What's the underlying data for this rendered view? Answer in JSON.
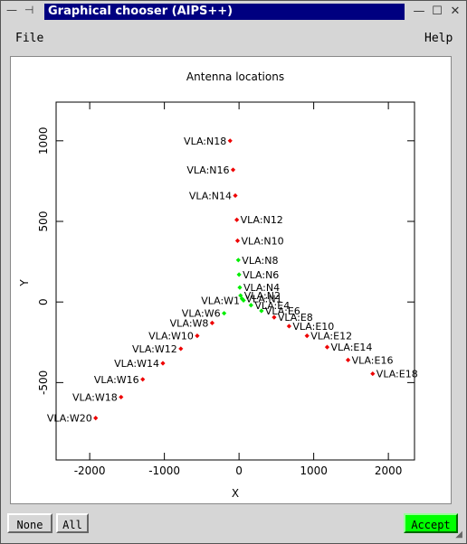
{
  "window": {
    "title": "Graphical chooser (AIPS++)",
    "left_glyphs": "— ⊣",
    "min_glyph": "—",
    "max_glyph": "☐",
    "close_glyph": "✕"
  },
  "menubar": {
    "file": "File",
    "help": "Help"
  },
  "buttons": {
    "none": "None",
    "all": "All",
    "accept": "Accept"
  },
  "colors": {
    "selected": "#00ee00",
    "unselected": "#ee0000",
    "accent": "#00ff00",
    "title_bg": "#000080"
  },
  "chart_data": {
    "type": "scatter",
    "title": "Antenna locations",
    "xlabel": "X",
    "ylabel": "Y",
    "xlim": [
      -2450,
      2350
    ],
    "ylim": [
      -980,
      1240
    ],
    "xticks": [
      -2000,
      -1000,
      0,
      1000,
      2000
    ],
    "yticks": [
      -500,
      0,
      500,
      1000
    ],
    "points": [
      {
        "label": "VLA:N18",
        "x": -120,
        "y": 1000,
        "selected": false
      },
      {
        "label": "VLA:N16",
        "x": -80,
        "y": 820,
        "selected": false
      },
      {
        "label": "VLA:N14",
        "x": -50,
        "y": 660,
        "selected": false
      },
      {
        "label": "VLA:N12",
        "x": -30,
        "y": 510,
        "selected": false
      },
      {
        "label": "VLA:N10",
        "x": -20,
        "y": 380,
        "selected": false
      },
      {
        "label": "VLA:N8",
        "x": -10,
        "y": 260,
        "selected": true
      },
      {
        "label": "VLA:N6",
        "x": 0,
        "y": 170,
        "selected": true
      },
      {
        "label": "VLA:N4",
        "x": 10,
        "y": 90,
        "selected": true
      },
      {
        "label": "VLA:N2",
        "x": 20,
        "y": 40,
        "selected": true
      },
      {
        "label": "VLA:N1",
        "x": 40,
        "y": 20,
        "selected": true
      },
      {
        "label": "VLA:W1",
        "x": 60,
        "y": 10,
        "selected": true
      },
      {
        "label": "VLA:E4",
        "x": 160,
        "y": -20,
        "selected": true
      },
      {
        "label": "VLA:E6",
        "x": 300,
        "y": -55,
        "selected": true
      },
      {
        "label": "VLA:E8",
        "x": 470,
        "y": -95,
        "selected": false
      },
      {
        "label": "VLA:E10",
        "x": 670,
        "y": -150,
        "selected": false
      },
      {
        "label": "VLA:E12",
        "x": 910,
        "y": -210,
        "selected": false
      },
      {
        "label": "VLA:E14",
        "x": 1180,
        "y": -280,
        "selected": false
      },
      {
        "label": "VLA:E16",
        "x": 1460,
        "y": -360,
        "selected": false
      },
      {
        "label": "VLA:E18",
        "x": 1790,
        "y": -445,
        "selected": false
      },
      {
        "label": "VLA:W6",
        "x": -200,
        "y": -70,
        "selected": true
      },
      {
        "label": "VLA:W8",
        "x": -360,
        "y": -130,
        "selected": false
      },
      {
        "label": "VLA:W10",
        "x": -560,
        "y": -210,
        "selected": false
      },
      {
        "label": "VLA:W12",
        "x": -780,
        "y": -290,
        "selected": false
      },
      {
        "label": "VLA:W14",
        "x": -1020,
        "y": -380,
        "selected": false
      },
      {
        "label": "VLA:W16",
        "x": -1290,
        "y": -480,
        "selected": false
      },
      {
        "label": "VLA:W18",
        "x": -1580,
        "y": -590,
        "selected": false
      },
      {
        "label": "VLA:W20",
        "x": -1920,
        "y": -720,
        "selected": false
      }
    ]
  }
}
